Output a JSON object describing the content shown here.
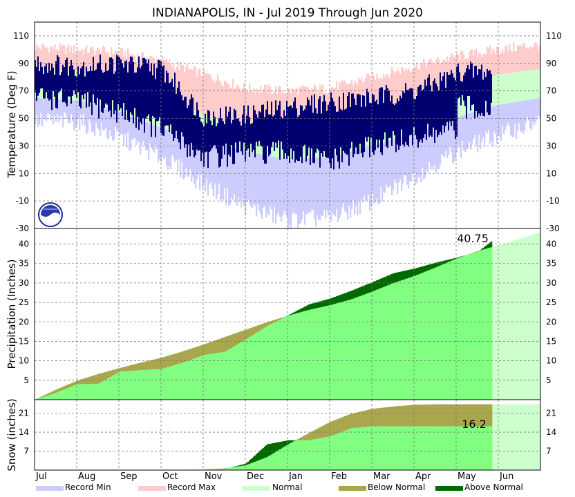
{
  "title": "INDIANAPOLIS, IN - Jul 2019 Through Jun 2020",
  "colors": {
    "record_min": "#ccccff",
    "record_max": "#ffcccc",
    "normal": "#ccffcc",
    "below_normal": "#aaa64e",
    "above_normal": "#006a00",
    "accumulated": "#80ff80",
    "actual_temp": "#000070"
  },
  "icons": {
    "logo": "noaa-logo-icon"
  },
  "chart_data": [
    {
      "type": "area",
      "panel": "temperature",
      "ylabel": "Temperature (Deg F)",
      "ylim": [
        -30,
        120
      ],
      "yticks": [
        -30,
        -10,
        10,
        30,
        50,
        70,
        90,
        110
      ],
      "grid": true,
      "month_labels": [
        "Jul",
        "Aug",
        "Sep",
        "Oct",
        "Nov",
        "Dec",
        "Jan",
        "Feb",
        "Mar",
        "Apr",
        "May",
        "Jun"
      ],
      "x_month_index": [
        0.0,
        1.0,
        2.0,
        3.0,
        4.0,
        5.0,
        6.0,
        7.0,
        8.0,
        9.0,
        10.0,
        11.0,
        12.0
      ],
      "record_max": [
        102,
        100,
        98,
        92,
        82,
        72,
        70,
        72,
        80,
        88,
        95,
        100,
        104
      ],
      "normal_high": [
        85,
        84,
        78,
        66,
        53,
        42,
        36,
        40,
        51,
        63,
        73,
        82,
        86
      ],
      "normal_low": [
        65,
        63,
        55,
        43,
        35,
        26,
        20,
        22,
        30,
        40,
        51,
        60,
        65
      ],
      "record_min": [
        48,
        48,
        36,
        22,
        2,
        -14,
        -24,
        -22,
        -10,
        8,
        26,
        38,
        48
      ],
      "actual_high": [
        90,
        88,
        90,
        86,
        52,
        52,
        58,
        62,
        65,
        70,
        82,
        null,
        null
      ],
      "actual_low": [
        66,
        62,
        55,
        42,
        22,
        25,
        25,
        18,
        30,
        35,
        42,
        null,
        null
      ]
    },
    {
      "type": "area",
      "panel": "precipitation",
      "ylabel": "Precipitation (Inches)",
      "ylim": [
        0,
        44
      ],
      "yticks": [
        5,
        10,
        15,
        20,
        25,
        30,
        35,
        40
      ],
      "grid": true,
      "annotation": "40.75",
      "x_month_index": [
        0.0,
        0.5,
        1.0,
        1.5,
        2.0,
        2.5,
        3.0,
        3.5,
        4.0,
        4.5,
        5.0,
        5.5,
        6.0,
        6.5,
        7.0,
        7.5,
        8.0,
        8.5,
        9.0,
        9.5,
        10.0,
        10.5,
        10.83,
        11.0,
        12.0
      ],
      "normal_accumulated": [
        0,
        2.6,
        4.9,
        6.6,
        8.1,
        9.5,
        10.8,
        12.4,
        14.2,
        16.1,
        18.0,
        19.9,
        21.6,
        23.1,
        24.3,
        25.8,
        27.8,
        30.0,
        31.8,
        34.0,
        36.3,
        38.2,
        39.2,
        39.6,
        43.0
      ],
      "actual_accumulated": [
        0,
        1.8,
        4.0,
        4.1,
        7.2,
        7.6,
        7.9,
        9.5,
        11.5,
        12.3,
        15.5,
        18.9,
        21.7,
        24.5,
        26.0,
        28.0,
        30.2,
        32.5,
        33.7,
        35.2,
        36.5,
        38.0,
        40.75,
        null,
        null
      ]
    },
    {
      "type": "area",
      "panel": "snow",
      "ylabel": "Snow (inches)",
      "ylim": [
        0,
        26
      ],
      "yticks": [
        7,
        14,
        21
      ],
      "grid": true,
      "annotation": "16.2",
      "x_month_index": [
        0.0,
        3.0,
        4.0,
        4.5,
        5.0,
        5.5,
        6.0,
        6.5,
        7.0,
        7.5,
        8.0,
        8.5,
        9.0,
        9.5,
        10.0,
        10.83,
        11.0,
        12.0
      ],
      "normal_accumulated": [
        0,
        0,
        0.2,
        0.6,
        1.8,
        4.8,
        9.5,
        13.7,
        17.8,
        20.8,
        22.6,
        23.5,
        24.1,
        24.3,
        24.3,
        24.3,
        24.3,
        24.3
      ],
      "actual_accumulated": [
        0,
        0,
        0.2,
        0.4,
        2.4,
        9.5,
        11.0,
        11.0,
        12.5,
        15.5,
        16.2,
        16.2,
        16.2,
        16.2,
        16.2,
        16.2,
        null,
        null
      ]
    }
  ],
  "legend": [
    {
      "label": "Record Min",
      "color_key": "record_min"
    },
    {
      "label": "Record Max",
      "color_key": "record_max"
    },
    {
      "label": "Normal",
      "color_key": "normal"
    },
    {
      "label": "Below Normal",
      "color_key": "below_normal"
    },
    {
      "label": "Above Normal",
      "color_key": "above_normal"
    }
  ]
}
